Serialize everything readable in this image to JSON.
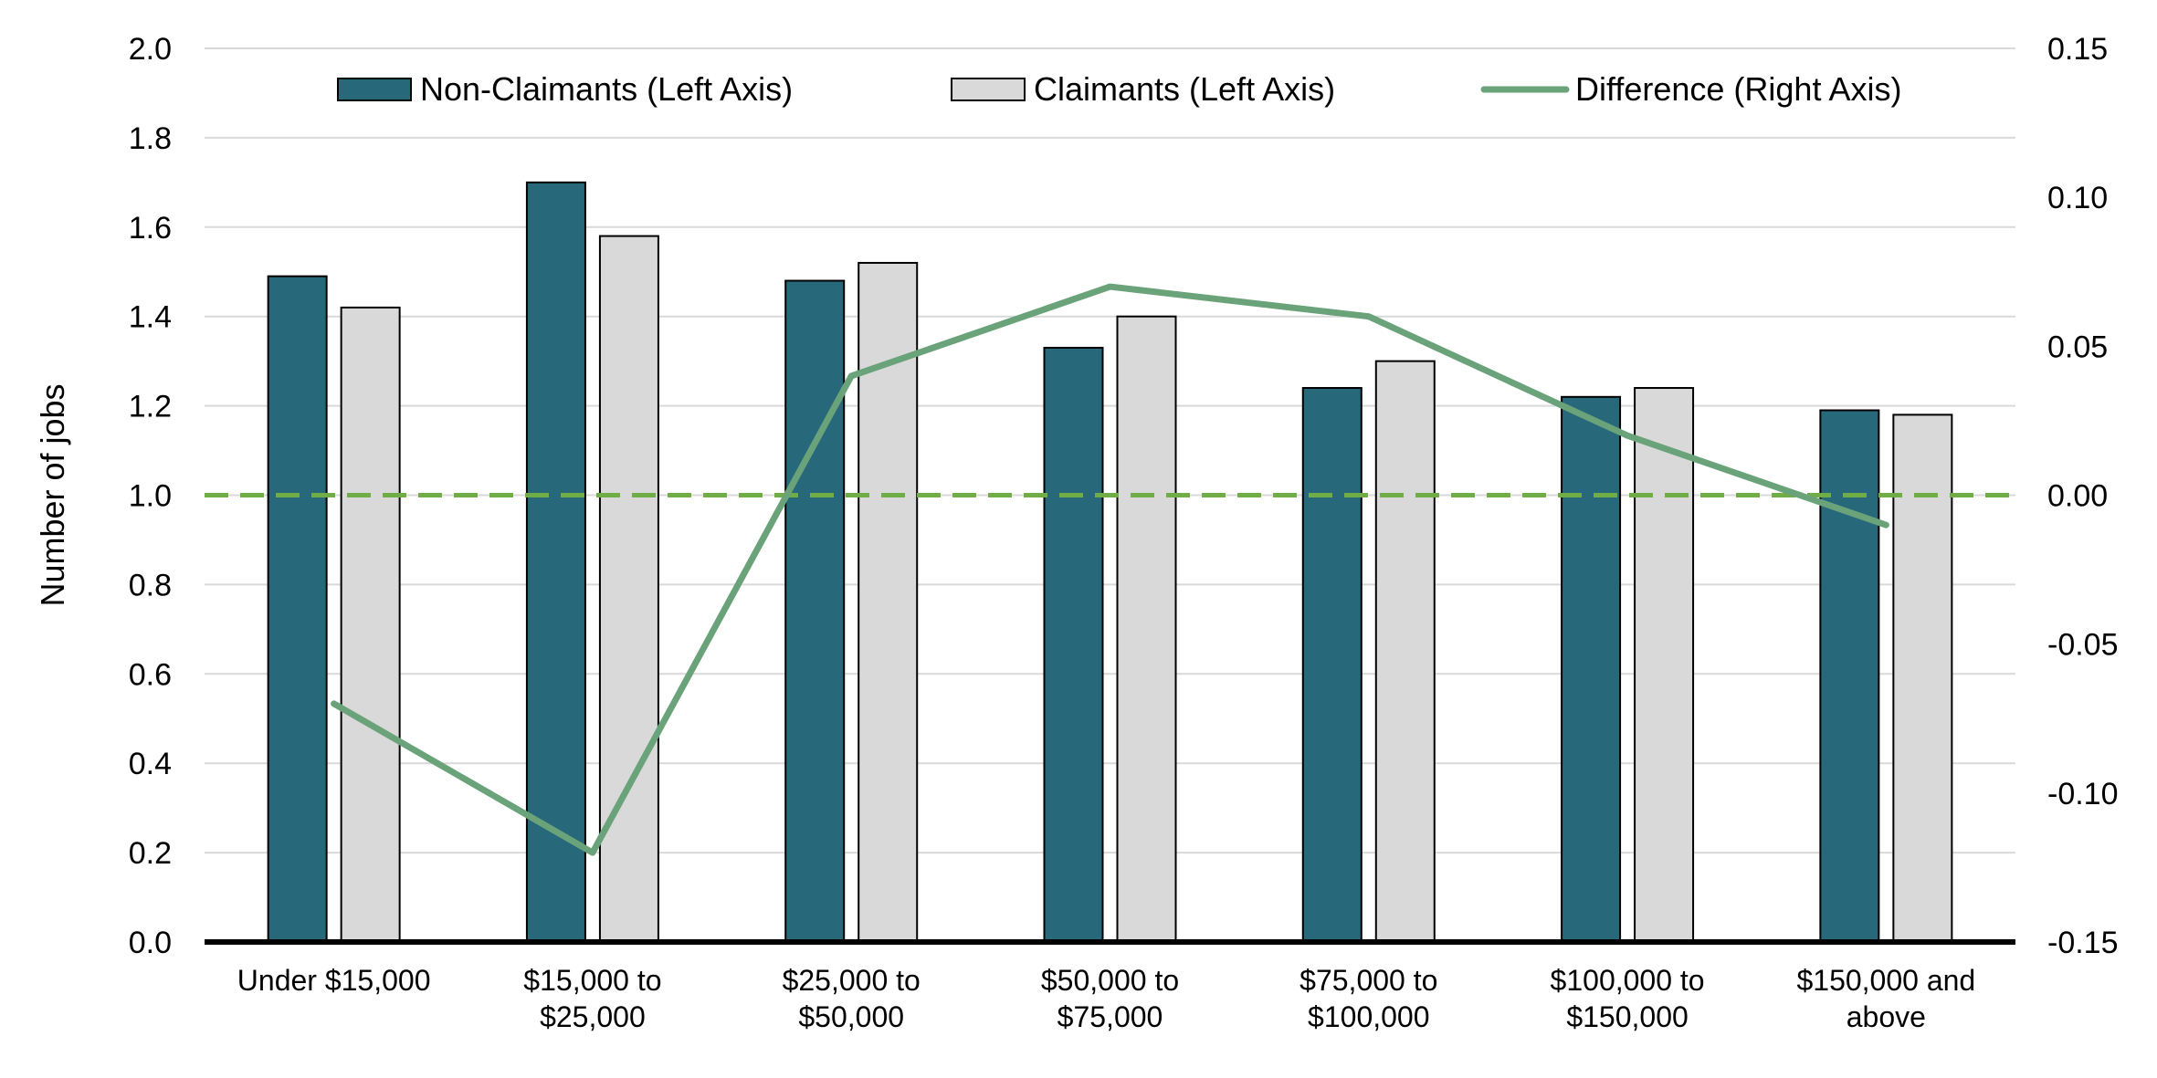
{
  "chart_data": {
    "type": "bar",
    "title": "",
    "categories": [
      [
        "Under $15,000"
      ],
      [
        "$15,000 to",
        "$25,000"
      ],
      [
        "$25,000 to",
        "$50,000"
      ],
      [
        "$50,000 to",
        "$75,000"
      ],
      [
        "$75,000 to",
        "$100,000"
      ],
      [
        "$100,000 to",
        "$150,000"
      ],
      [
        "$150,000 and",
        "above"
      ]
    ],
    "series": [
      {
        "name": "Non-Claimants (Left Axis)",
        "kind": "bar",
        "axis": "left",
        "color": "#27687a",
        "values": [
          1.49,
          1.7,
          1.48,
          1.33,
          1.24,
          1.22,
          1.19
        ]
      },
      {
        "name": "Claimants (Left Axis)",
        "kind": "bar",
        "axis": "left",
        "color": "#d9d9d9",
        "values": [
          1.42,
          1.58,
          1.52,
          1.4,
          1.3,
          1.24,
          1.18
        ]
      },
      {
        "name": "Difference (Right Axis)",
        "kind": "line",
        "axis": "right",
        "color": "#6aa37a",
        "values": [
          -0.07,
          -0.12,
          0.04,
          0.07,
          0.06,
          0.02,
          -0.01
        ]
      }
    ],
    "left_axis": {
      "label": "Number of jobs",
      "range": [
        0,
        2.0
      ],
      "ticks": [
        "0.0",
        "0.2",
        "0.4",
        "0.6",
        "0.8",
        "1.0",
        "1.2",
        "1.4",
        "1.6",
        "1.8",
        "2.0"
      ]
    },
    "right_axis": {
      "label": "",
      "range": [
        -0.15,
        0.15
      ],
      "ticks": [
        "-0.15",
        "-0.10",
        "-0.05",
        "0.00",
        "0.05",
        "0.10",
        "0.15"
      ]
    },
    "reference_line": {
      "style": "dashed",
      "axis": "right",
      "value": 0.0,
      "color": "#70ad47"
    },
    "grid": true,
    "legend_position": "top"
  }
}
